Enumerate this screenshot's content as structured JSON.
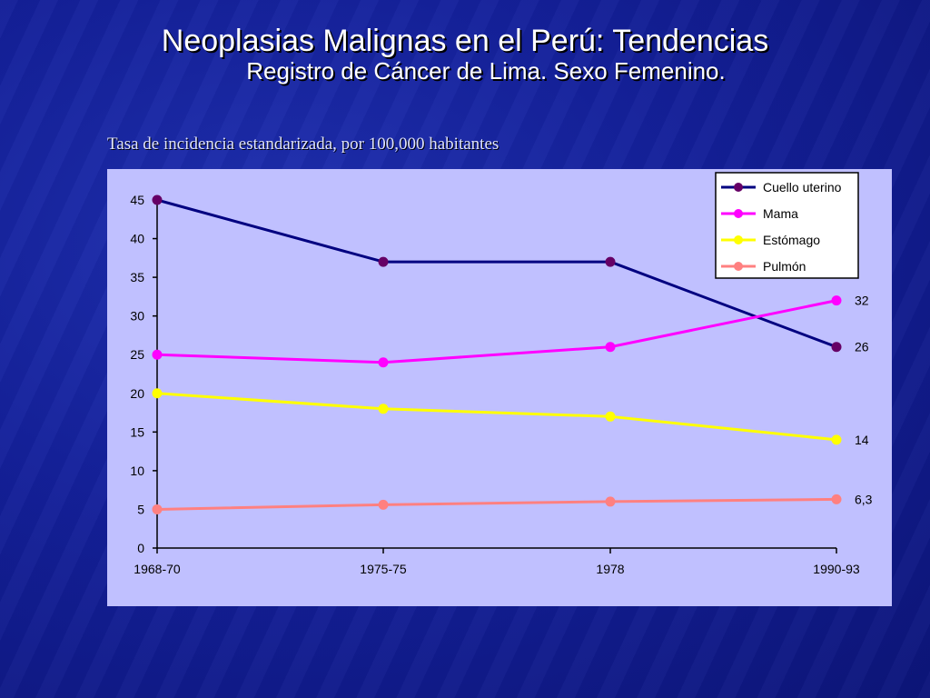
{
  "slide": {
    "title": "Neoplasias Malignas en el Perú: Tendencias",
    "subtitle": "Registro de Cáncer de Lima. Sexo Femenino.",
    "caption": "Tasa de incidencia estandarizada, por 100,000 habitantes"
  },
  "chart_data": {
    "type": "line",
    "title": "",
    "xlabel": "",
    "ylabel": "",
    "categories": [
      "1968-70",
      "1975-75",
      "1978",
      "1990-93"
    ],
    "ylim": [
      0,
      45
    ],
    "yticks": [
      0,
      5,
      10,
      15,
      20,
      25,
      30,
      35,
      40,
      45
    ],
    "grid": false,
    "legend_position": "top-right",
    "background_color": "#c0c0ff",
    "series": [
      {
        "name": "Cuello uterino",
        "color": "#000080",
        "marker_color": "#660066",
        "values": [
          45,
          37,
          37,
          26
        ],
        "end_label": "26"
      },
      {
        "name": "Mama",
        "color": "#ff00ff",
        "marker_color": "#ff00ff",
        "values": [
          25,
          24,
          26,
          32
        ],
        "end_label": "32"
      },
      {
        "name": "Estómago",
        "color": "#ffff00",
        "marker_color": "#ffff00",
        "values": [
          20,
          18,
          17,
          14
        ],
        "end_label": "14"
      },
      {
        "name": "Pulmón",
        "color": "#ff8080",
        "marker_color": "#ff8080",
        "values": [
          5,
          5.6,
          6,
          6.3
        ],
        "end_label": "6,3"
      }
    ]
  }
}
